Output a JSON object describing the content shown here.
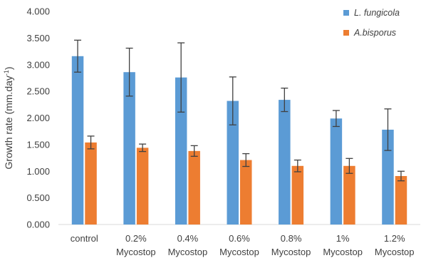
{
  "chart_data": {
    "type": "bar",
    "title": "",
    "xlabel": "",
    "ylabel": "Growth rate (mm.day",
    "ylabel_superscript": "-1",
    "ylabel_suffix": ")",
    "categories": [
      [
        "control"
      ],
      [
        "0.2%",
        "Mycostop"
      ],
      [
        "0.4%",
        "Mycostop"
      ],
      [
        "0.6%",
        "Mycostop"
      ],
      [
        "0.8%",
        "Mycostop"
      ],
      [
        "1%",
        "Mycostop"
      ],
      [
        "1.2%",
        "Mycostop"
      ]
    ],
    "ylim": [
      0,
      4
    ],
    "yticks": [
      "0.000",
      "0.500",
      "1.000",
      "1.500",
      "2.000",
      "2.500",
      "3.000",
      "3.500",
      "4.000"
    ],
    "ytick_values": [
      0,
      0.5,
      1,
      1.5,
      2,
      2.5,
      3,
      3.5,
      4
    ],
    "grid": false,
    "legend_position": "top-right",
    "series": [
      {
        "name": "L. fungicola",
        "italic": true,
        "color": "#5B9BD5",
        "values": [
          3.16,
          2.86,
          2.76,
          2.32,
          2.34,
          1.99,
          1.78
        ],
        "errors": [
          0.3,
          0.45,
          0.65,
          0.45,
          0.22,
          0.15,
          0.39
        ]
      },
      {
        "name": "A.bisporus",
        "italic": true,
        "color": "#ED7D31",
        "values": [
          1.54,
          1.44,
          1.38,
          1.21,
          1.1,
          1.1,
          0.91
        ],
        "errors": [
          0.12,
          0.07,
          0.1,
          0.12,
          0.11,
          0.14,
          0.09
        ]
      }
    ],
    "axis_color": "#D9D9D9",
    "error_bar_color": "#404040"
  }
}
